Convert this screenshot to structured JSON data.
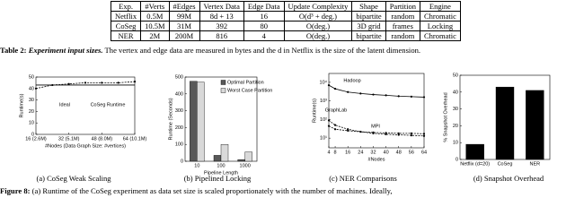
{
  "table": {
    "header": [
      "Exp.",
      "#Verts",
      "#Edges",
      "Vertex Data",
      "Edge Data",
      "Update Complexity",
      "Shape",
      "Partition",
      "Engine"
    ],
    "rows": [
      [
        "Netflix",
        "0.5M",
        "99M",
        "8d + 13",
        16,
        "O(d³ + deg.)",
        "bipartite",
        "random",
        "Chromatic"
      ],
      [
        "CoSeg",
        "10.5M",
        "31M",
        392,
        80,
        "O(deg.)",
        "3D grid",
        "frames",
        "Locking"
      ],
      [
        "NER",
        "2M",
        "200M",
        816,
        4,
        "O(deg.)",
        "bipartite",
        "random",
        "Chromatic"
      ]
    ]
  },
  "table_caption": {
    "label": "Table 2:",
    "title": "Experiment input sizes.",
    "text": "The vertex and edge data are measured in bytes and the d in Netflix is the size of the latent dimension."
  },
  "chart_data": [
    {
      "type": "line",
      "subcaption": "(a) CoSeg Weak Scaling",
      "ylabel": "Runtime(s)",
      "xlabel": "#Nodes (Data Graph Size: #vertices)",
      "x": [
        16,
        24,
        32,
        40,
        48,
        56,
        64
      ],
      "xlim": [
        16,
        64
      ],
      "xticks": [
        {
          "value": 16,
          "label": "16 (2.6M)"
        },
        {
          "value": 32,
          "label": "32 (5.1M)"
        },
        {
          "value": 48,
          "label": "48 (8.0M)"
        },
        {
          "value": 64,
          "label": "64 (10.1M)"
        }
      ],
      "ylim": [
        0,
        50
      ],
      "yticks": [
        0,
        10,
        20,
        30,
        40,
        50
      ],
      "series": [
        {
          "name": "Ideal",
          "color": "#000000",
          "style": "solid",
          "values": [
            43,
            43,
            43,
            43,
            43,
            43,
            43
          ]
        },
        {
          "name": "CoSeg Runtime",
          "color": "#000000",
          "style": "dashed",
          "marker": true,
          "values": [
            40,
            43,
            44,
            45,
            45,
            45,
            46
          ]
        }
      ]
    },
    {
      "type": "bar",
      "subcaption": "(b) Pipelined Locking",
      "ylabel": "Runtime (Seconds)",
      "xlabel": "Pipeline Length",
      "categories": [
        "10",
        "100",
        "1000"
      ],
      "ylim": [
        0,
        500
      ],
      "yticks": [
        0,
        100,
        200,
        300,
        400,
        500
      ],
      "legend": "upper right",
      "series": [
        {
          "name": "Optimal Partition",
          "color": "#595959",
          "values": [
            475,
            35,
            10
          ]
        },
        {
          "name": "Worst Case Partition",
          "color": "#d9d9d9",
          "values": [
            470,
            100,
            55
          ]
        }
      ]
    },
    {
      "type": "line",
      "subcaption": "(c) NER Comparisons",
      "ylabel": "Runtime(s)",
      "xlabel": "#Nodes",
      "log_y": true,
      "x": [
        4,
        8,
        16,
        24,
        32,
        40,
        48,
        56,
        64
      ],
      "xlim": [
        4,
        64
      ],
      "xticks": [
        4,
        8,
        16,
        24,
        32,
        40,
        48,
        56,
        64
      ],
      "ylim": [
        3,
        30000
      ],
      "yticks": [
        {
          "value": 10,
          "label": "10¹"
        },
        {
          "value": 100,
          "label": "10²"
        },
        {
          "value": 1000,
          "label": "10³"
        },
        {
          "value": 10000,
          "label": "10⁴"
        }
      ],
      "series": [
        {
          "name": "Hadoop",
          "color": "#000000",
          "style": "solid",
          "marker": true,
          "values": [
            7000,
            4500,
            3000,
            2500,
            2200,
            2000,
            1800,
            1700,
            1600
          ]
        },
        {
          "name": "GraphLab",
          "color": "#000000",
          "style": "dashed",
          "marker": true,
          "values": [
            90,
            50,
            30,
            22,
            18,
            16,
            15,
            14,
            13
          ]
        },
        {
          "name": "MPI",
          "color": "#000000",
          "style": "dashed",
          "marker": true,
          "values": [
            45,
            30,
            25,
            22,
            20,
            19,
            18,
            18,
            17
          ]
        }
      ]
    },
    {
      "type": "bar",
      "subcaption": "(d) Snapshot Overhead",
      "ylabel": "% Snapshot Overhead",
      "categories": [
        "Netflix (d=20)",
        "CoSeg",
        "NER"
      ],
      "values": [
        9,
        43,
        41
      ],
      "color": "#000000",
      "ylim": [
        0,
        50
      ],
      "yticks": [
        0,
        10,
        20,
        30,
        40,
        50
      ]
    }
  ],
  "figure_caption": {
    "label": "Figure 8:",
    "text": "(a) Runtime of the CoSeg experiment as data set size is scaled proportionately with the number of machines. Ideally,"
  }
}
